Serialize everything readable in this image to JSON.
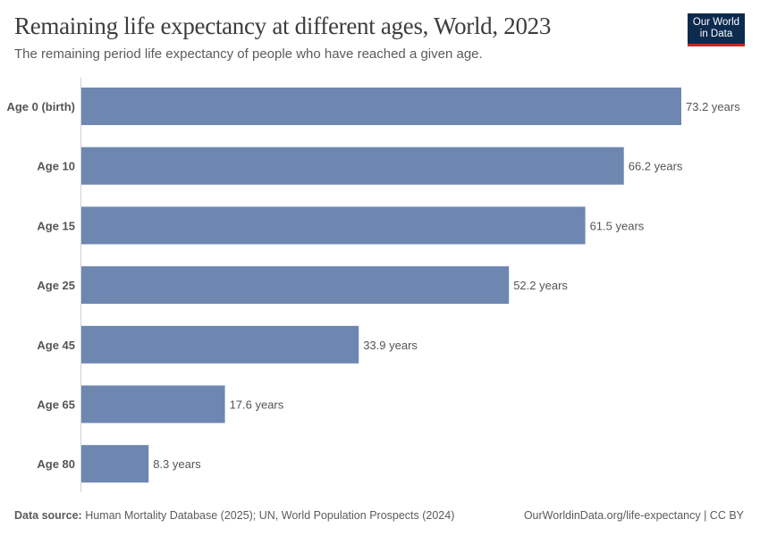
{
  "header": {
    "title": "Remaining life expectancy at different ages, World, 2023",
    "subtitle": "The remaining period life expectancy of people who have reached a given age.",
    "logo_text": "Our World in Data"
  },
  "chart_data": {
    "type": "bar",
    "orientation": "horizontal",
    "title": "Remaining life expectancy at different ages, World, 2023",
    "categories": [
      "Age 0 (birth)",
      "Age 10",
      "Age 15",
      "Age 25",
      "Age 45",
      "Age 65",
      "Age 80"
    ],
    "values": [
      73.2,
      66.2,
      61.5,
      52.2,
      33.9,
      17.6,
      8.3
    ],
    "value_labels": [
      "73.2 years",
      "66.2 years",
      "61.5 years",
      "52.2 years",
      "33.9 years",
      "17.6 years",
      "8.3 years"
    ],
    "unit": "years",
    "xlim": [
      0,
      73.2
    ],
    "grid": false,
    "bar_color": "#6d87b0"
  },
  "footer": {
    "source_label": "Data source:",
    "source_text": "Human Mortality Database (2025); UN, World Population Prospects (2024)",
    "url": "OurWorldinData.org/life-expectancy | CC BY"
  }
}
